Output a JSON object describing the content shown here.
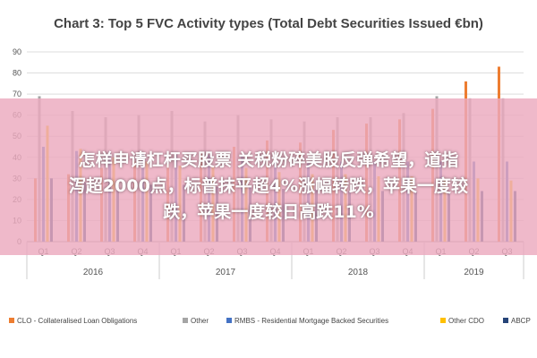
{
  "chart_data": {
    "type": "bar",
    "title": "Chart 3: Top 5 FVC Activity types (Total Debt Securities Issued €bn)",
    "ylim": [
      0,
      90
    ],
    "yticks": [
      0,
      10,
      20,
      30,
      40,
      50,
      60,
      70,
      80,
      90
    ],
    "grid": true,
    "legend_position": "bottom",
    "years": [
      {
        "label": "2016",
        "quarters": 4
      },
      {
        "label": "2017",
        "quarters": 4
      },
      {
        "label": "2018",
        "quarters": 4
      },
      {
        "label": "2019",
        "quarters": 3
      }
    ],
    "categories": [
      "Q1",
      "Q2",
      "Q3",
      "Q4",
      "Q1",
      "Q2",
      "Q3",
      "Q4",
      "Q1",
      "Q2",
      "Q3",
      "Q4",
      "Q1",
      "Q2",
      "Q3"
    ],
    "series": [
      {
        "name": "CLO - Collateralised Loan Obligations",
        "color": "#ed7d31",
        "values": [
          30,
          32,
          35,
          38,
          37,
          42,
          45,
          48,
          47,
          53,
          56,
          58,
          63,
          76,
          83
        ]
      },
      {
        "name": "Other",
        "color": "#a5a5a5",
        "values": [
          69,
          62,
          59,
          60,
          62,
          57,
          60,
          58,
          57,
          59,
          59,
          61,
          69,
          68,
          68
        ]
      },
      {
        "name": "RMBS - Residential Mortgage Backed Securities",
        "color": "#4472c4",
        "values": [
          45,
          43,
          43,
          42,
          42,
          41,
          41,
          39,
          38,
          38,
          38,
          38,
          38,
          38,
          38
        ]
      },
      {
        "name": "Other CDO",
        "color": "#ffc000",
        "values": [
          55,
          44,
          40,
          38,
          36,
          36,
          35,
          33,
          32,
          32,
          31,
          31,
          30,
          30,
          29
        ]
      },
      {
        "name": "ABCP",
        "color": "#264478",
        "values": [
          30,
          28,
          28,
          27,
          27,
          26,
          26,
          25,
          25,
          24,
          24,
          24,
          24,
          24,
          24
        ]
      }
    ]
  },
  "overlay": {
    "lines": [
      "怎样申请杠杆买股票 关税粉碎美股反弹希望，道指",
      "泻超2000点，标普抹平超4%涨幅转跌，苹果一度较",
      "跌，苹果一度较日高跌11%"
    ]
  }
}
